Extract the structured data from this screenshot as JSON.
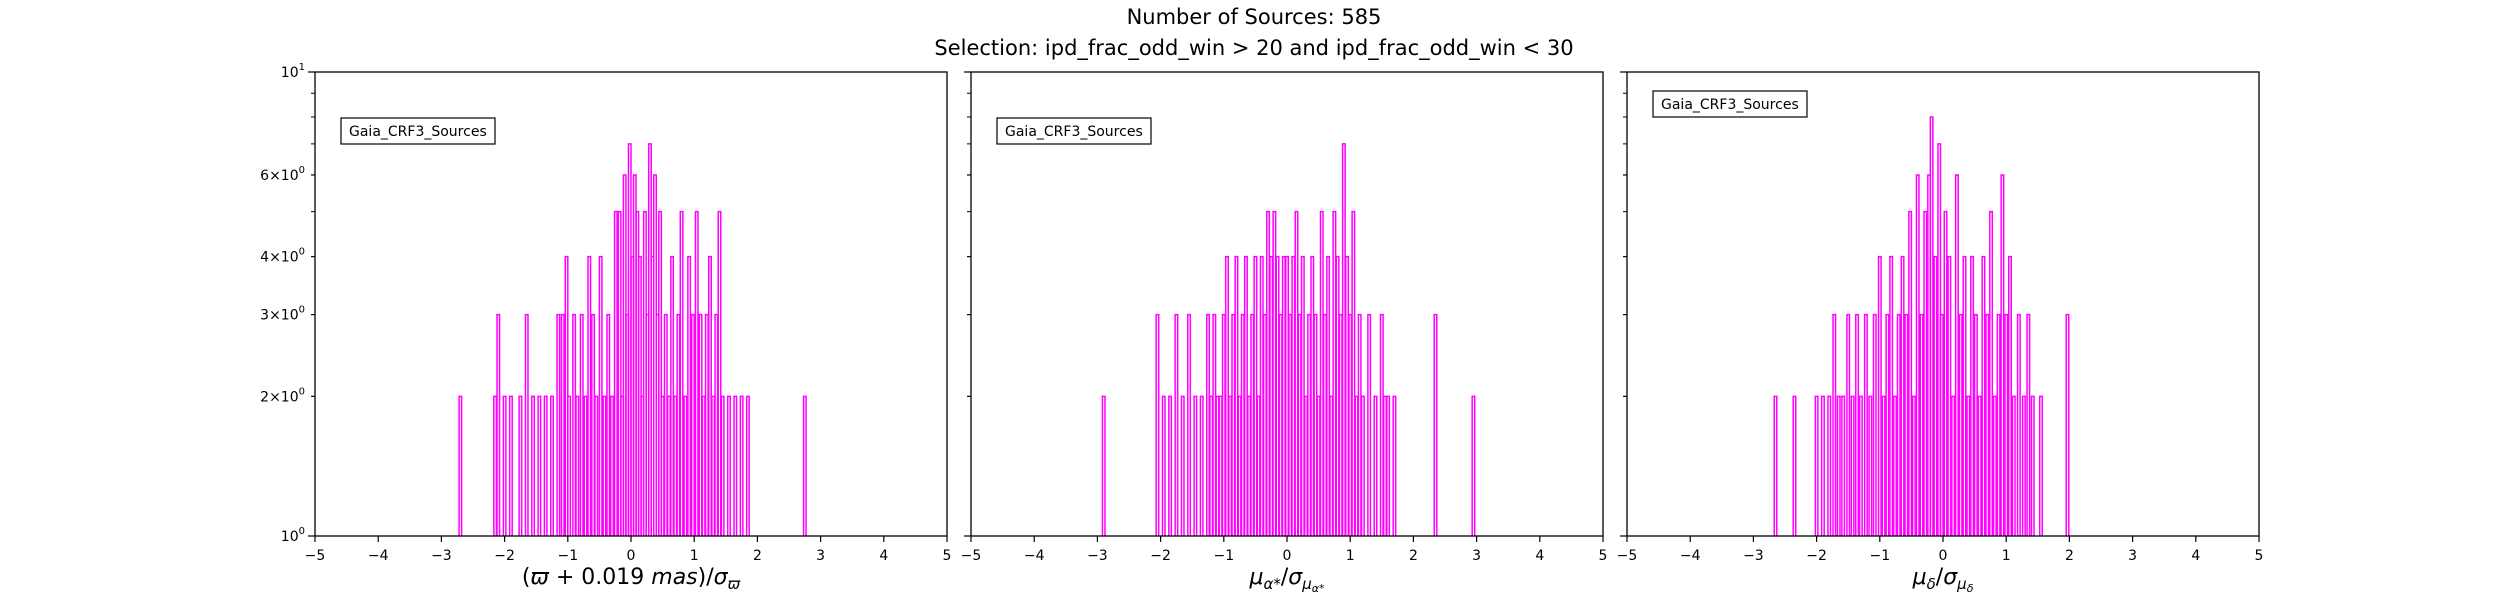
{
  "suptitle": {
    "line1": "Number of Sources: 585",
    "line2": "Selection: ipd_frac_odd_win > 20 and ipd_frac_odd_win < 30"
  },
  "chart_data": [
    {
      "type": "bar",
      "title": "",
      "xlabel": "(ϖ + 0.019 mas)/σ_ϖ",
      "ylabel": "",
      "xlim": [
        -5,
        5
      ],
      "ylim": [
        1,
        10
      ],
      "yscale": "log",
      "grid": false,
      "legend": "upper-left",
      "series": [
        {
          "name": "Gaia_CRF3_Sources",
          "color": "#ff00ff"
        }
      ],
      "xticks": [
        "−5",
        "−4",
        "−3",
        "−2",
        "−1",
        "0",
        "1",
        "2",
        "3",
        "4",
        "5"
      ],
      "yticks": [
        {
          "value": 1,
          "label": "10^0"
        },
        {
          "value": 2,
          "label": "2×10^0"
        },
        {
          "value": 3,
          "label": "3×10^0"
        },
        {
          "value": 4,
          "label": "4×10^0"
        },
        {
          "value": 6,
          "label": "6×10^0"
        },
        {
          "value": 10,
          "label": "10^1"
        }
      ],
      "bins": [
        [
          -2.7,
          2
        ],
        [
          -2.15,
          2
        ],
        [
          -2.1,
          3
        ],
        [
          -2.0,
          2
        ],
        [
          -1.9,
          2
        ],
        [
          -1.75,
          2
        ],
        [
          -1.65,
          3
        ],
        [
          -1.55,
          2
        ],
        [
          -1.45,
          2
        ],
        [
          -1.35,
          2
        ],
        [
          -1.25,
          2
        ],
        [
          -1.15,
          3
        ],
        [
          -1.08,
          3
        ],
        [
          -1.02,
          4
        ],
        [
          -0.98,
          2
        ],
        [
          -0.9,
          3
        ],
        [
          -0.85,
          2
        ],
        [
          -0.78,
          3
        ],
        [
          -0.72,
          2
        ],
        [
          -0.66,
          4
        ],
        [
          -0.6,
          3
        ],
        [
          -0.55,
          2
        ],
        [
          -0.48,
          4
        ],
        [
          -0.42,
          2
        ],
        [
          -0.36,
          3
        ],
        [
          -0.3,
          2
        ],
        [
          -0.24,
          5
        ],
        [
          -0.18,
          5
        ],
        [
          -0.14,
          2
        ],
        [
          -0.1,
          6
        ],
        [
          -0.06,
          3
        ],
        [
          -0.02,
          7
        ],
        [
          0.02,
          4
        ],
        [
          0.06,
          6
        ],
        [
          0.1,
          5
        ],
        [
          0.14,
          4
        ],
        [
          0.18,
          2
        ],
        [
          0.22,
          5
        ],
        [
          0.26,
          3
        ],
        [
          0.3,
          7
        ],
        [
          0.34,
          4
        ],
        [
          0.38,
          6
        ],
        [
          0.42,
          3
        ],
        [
          0.46,
          5
        ],
        [
          0.5,
          2
        ],
        [
          0.55,
          3
        ],
        [
          0.6,
          2
        ],
        [
          0.65,
          4
        ],
        [
          0.7,
          2
        ],
        [
          0.75,
          3
        ],
        [
          0.8,
          5
        ],
        [
          0.86,
          2
        ],
        [
          0.92,
          4
        ],
        [
          0.98,
          3
        ],
        [
          1.04,
          5
        ],
        [
          1.1,
          3
        ],
        [
          1.15,
          2
        ],
        [
          1.2,
          3
        ],
        [
          1.25,
          4
        ],
        [
          1.3,
          2
        ],
        [
          1.35,
          3
        ],
        [
          1.4,
          5
        ],
        [
          1.45,
          2
        ],
        [
          1.55,
          2
        ],
        [
          1.65,
          2
        ],
        [
          1.75,
          2
        ],
        [
          1.85,
          2
        ],
        [
          2.75,
          2
        ]
      ]
    },
    {
      "type": "bar",
      "title": "",
      "xlabel": "μ_α*/σ_μα*",
      "ylabel": "",
      "xlim": [
        -5,
        5
      ],
      "ylim": [
        1,
        10
      ],
      "yscale": "log",
      "grid": false,
      "legend": "upper-left",
      "series": [
        {
          "name": "Gaia_CRF3_Sources",
          "color": "#ff00ff"
        }
      ],
      "xticks": [
        "−5",
        "−4",
        "−3",
        "−2",
        "−1",
        "0",
        "1",
        "2",
        "3",
        "4",
        "5"
      ],
      "bins": [
        [
          -2.9,
          2
        ],
        [
          -2.05,
          3
        ],
        [
          -1.95,
          2
        ],
        [
          -1.85,
          2
        ],
        [
          -1.75,
          3
        ],
        [
          -1.65,
          2
        ],
        [
          -1.55,
          3
        ],
        [
          -1.45,
          2
        ],
        [
          -1.35,
          2
        ],
        [
          -1.25,
          3
        ],
        [
          -1.2,
          2
        ],
        [
          -1.15,
          3
        ],
        [
          -1.1,
          2
        ],
        [
          -1.05,
          2
        ],
        [
          -1.0,
          3
        ],
        [
          -0.95,
          4
        ],
        [
          -0.9,
          2
        ],
        [
          -0.85,
          3
        ],
        [
          -0.8,
          4
        ],
        [
          -0.75,
          2
        ],
        [
          -0.7,
          3
        ],
        [
          -0.65,
          4
        ],
        [
          -0.6,
          2
        ],
        [
          -0.55,
          3
        ],
        [
          -0.5,
          4
        ],
        [
          -0.45,
          2
        ],
        [
          -0.4,
          4
        ],
        [
          -0.35,
          3
        ],
        [
          -0.3,
          5
        ],
        [
          -0.25,
          4
        ],
        [
          -0.2,
          5
        ],
        [
          -0.15,
          4
        ],
        [
          -0.1,
          3
        ],
        [
          -0.05,
          4
        ],
        [
          0.0,
          4
        ],
        [
          0.05,
          3
        ],
        [
          0.1,
          4
        ],
        [
          0.15,
          5
        ],
        [
          0.2,
          3
        ],
        [
          0.25,
          4
        ],
        [
          0.3,
          2
        ],
        [
          0.35,
          3
        ],
        [
          0.4,
          4
        ],
        [
          0.45,
          3
        ],
        [
          0.5,
          2
        ],
        [
          0.55,
          5
        ],
        [
          0.6,
          3
        ],
        [
          0.65,
          4
        ],
        [
          0.7,
          2
        ],
        [
          0.75,
          5
        ],
        [
          0.8,
          4
        ],
        [
          0.85,
          3
        ],
        [
          0.9,
          7
        ],
        [
          0.95,
          4
        ],
        [
          1.0,
          3
        ],
        [
          1.05,
          5
        ],
        [
          1.1,
          2
        ],
        [
          1.15,
          3
        ],
        [
          1.2,
          2
        ],
        [
          1.3,
          3
        ],
        [
          1.4,
          2
        ],
        [
          1.5,
          3
        ],
        [
          1.55,
          2
        ],
        [
          1.6,
          2
        ],
        [
          1.7,
          2
        ],
        [
          2.35,
          3
        ],
        [
          2.95,
          2
        ]
      ]
    },
    {
      "type": "bar",
      "title": "",
      "xlabel": "μ_δ/σ_μδ",
      "ylabel": "",
      "xlim": [
        -5,
        5
      ],
      "ylim": [
        1,
        10
      ],
      "yscale": "log",
      "grid": false,
      "legend": "upper-left",
      "series": [
        {
          "name": "Gaia_CRF3_Sources",
          "color": "#ff00ff"
        }
      ],
      "xticks": [
        "−5",
        "−4",
        "−3",
        "−2",
        "−1",
        "0",
        "1",
        "2",
        "3",
        "4",
        "5"
      ],
      "bins": [
        [
          -2.65,
          2
        ],
        [
          -2.35,
          2
        ],
        [
          -2.0,
          2
        ],
        [
          -1.9,
          2
        ],
        [
          -1.8,
          2
        ],
        [
          -1.72,
          3
        ],
        [
          -1.65,
          2
        ],
        [
          -1.58,
          2
        ],
        [
          -1.5,
          3
        ],
        [
          -1.43,
          2
        ],
        [
          -1.36,
          3
        ],
        [
          -1.3,
          2
        ],
        [
          -1.22,
          3
        ],
        [
          -1.15,
          2
        ],
        [
          -1.08,
          3
        ],
        [
          -1.0,
          4
        ],
        [
          -0.94,
          2
        ],
        [
          -0.88,
          3
        ],
        [
          -0.82,
          4
        ],
        [
          -0.76,
          2
        ],
        [
          -0.7,
          3
        ],
        [
          -0.64,
          4
        ],
        [
          -0.58,
          3
        ],
        [
          -0.52,
          5
        ],
        [
          -0.46,
          2
        ],
        [
          -0.4,
          6
        ],
        [
          -0.34,
          3
        ],
        [
          -0.28,
          5
        ],
        [
          -0.22,
          6
        ],
        [
          -0.18,
          8
        ],
        [
          -0.12,
          4
        ],
        [
          -0.06,
          7
        ],
        [
          -0.02,
          3
        ],
        [
          0.04,
          5
        ],
        [
          0.1,
          4
        ],
        [
          0.16,
          2
        ],
        [
          0.22,
          6
        ],
        [
          0.28,
          3
        ],
        [
          0.34,
          4
        ],
        [
          0.4,
          2
        ],
        [
          0.46,
          4
        ],
        [
          0.52,
          3
        ],
        [
          0.58,
          2
        ],
        [
          0.64,
          4
        ],
        [
          0.7,
          3
        ],
        [
          0.76,
          5
        ],
        [
          0.82,
          2
        ],
        [
          0.88,
          3
        ],
        [
          0.94,
          6
        ],
        [
          1.0,
          3
        ],
        [
          1.06,
          4
        ],
        [
          1.12,
          2
        ],
        [
          1.2,
          3
        ],
        [
          1.28,
          2
        ],
        [
          1.35,
          3
        ],
        [
          1.42,
          2
        ],
        [
          1.55,
          2
        ],
        [
          1.97,
          3
        ]
      ]
    }
  ]
}
